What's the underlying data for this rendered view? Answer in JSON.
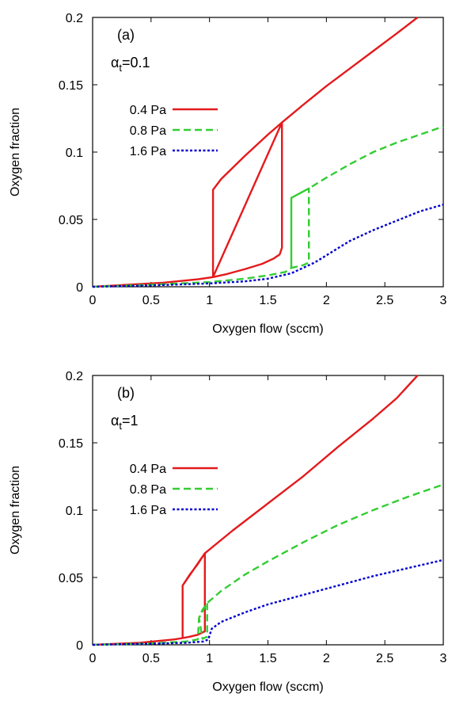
{
  "chart_data": [
    {
      "type": "line",
      "panel_label": "(a)",
      "param_symbol": "α",
      "param_sub": "t",
      "param_value": "=0.1",
      "xlabel": "Oxygen flow (sccm)",
      "ylabel": "Oxygen fraction",
      "xlim": [
        0,
        3
      ],
      "ylim": [
        0,
        0.2
      ],
      "xticks": [
        0,
        0.5,
        1,
        1.5,
        2,
        2.5,
        3
      ],
      "xtick_labels": [
        "0",
        "0.5",
        "1",
        "1.5",
        "2",
        "2.5",
        "3"
      ],
      "yticks": [
        0,
        0.05,
        0.1,
        0.15,
        0.2
      ],
      "ytick_labels": [
        "0",
        "0.05",
        "0.1",
        "0.15",
        "0.2"
      ],
      "legend_position": "top-left",
      "grid": false,
      "series": [
        {
          "name": "0.4 Pa",
          "color": "#e41a1c",
          "style": "solid",
          "points": [
            [
              0,
              0
            ],
            [
              0.3,
              0.0015
            ],
            [
              0.6,
              0.003
            ],
            [
              0.9,
              0.0055
            ],
            [
              1.03,
              0.0072
            ],
            [
              1.03,
              0.072
            ],
            [
              1.1,
              0.08
            ],
            [
              1.3,
              0.097
            ],
            [
              1.5,
              0.113
            ],
            [
              1.62,
              0.122
            ],
            [
              1.62,
              0.029
            ],
            [
              1.6,
              0.024
            ],
            [
              1.55,
              0.021
            ],
            [
              1.45,
              0.017
            ],
            [
              1.3,
              0.013
            ],
            [
              1.15,
              0.0095
            ],
            [
              1.03,
              0.0072
            ],
            [
              1.03,
              0.0072
            ],
            [
              1.62,
              0.122
            ],
            [
              1.8,
              0.135
            ],
            [
              2.0,
              0.149
            ],
            [
              2.2,
              0.162
            ],
            [
              2.4,
              0.175
            ],
            [
              2.6,
              0.188
            ],
            [
              2.78,
              0.2
            ]
          ]
        },
        {
          "name": "0.8 Pa",
          "color": "#32cd32",
          "style": "dashed",
          "points": [
            [
              0,
              0
            ],
            [
              0.5,
              0.0015
            ],
            [
              1.0,
              0.0035
            ],
            [
              1.3,
              0.006
            ],
            [
              1.5,
              0.0085
            ],
            [
              1.65,
              0.011
            ],
            [
              1.7,
              0.014
            ],
            [
              1.7,
              0.066
            ],
            [
              1.85,
              0.073
            ],
            [
              1.85,
              0.018
            ],
            [
              1.8,
              0.016
            ],
            [
              1.7,
              0.014
            ],
            [
              1.7,
              0.066
            ],
            [
              1.85,
              0.073
            ],
            [
              2.0,
              0.081
            ],
            [
              2.2,
              0.091
            ],
            [
              2.4,
              0.1
            ],
            [
              2.6,
              0.107
            ],
            [
              2.8,
              0.113
            ],
            [
              3.0,
              0.119
            ]
          ]
        },
        {
          "name": "1.6 Pa",
          "color": "#0000cd",
          "style": "dotted",
          "points": [
            [
              0,
              0
            ],
            [
              0.5,
              0.001
            ],
            [
              1.0,
              0.0025
            ],
            [
              1.3,
              0.004
            ],
            [
              1.5,
              0.006
            ],
            [
              1.7,
              0.01
            ],
            [
              1.9,
              0.018
            ],
            [
              2.05,
              0.026
            ],
            [
              2.2,
              0.034
            ],
            [
              2.4,
              0.042
            ],
            [
              2.6,
              0.049
            ],
            [
              2.8,
              0.056
            ],
            [
              3.0,
              0.061
            ]
          ]
        }
      ]
    },
    {
      "type": "line",
      "panel_label": "(b)",
      "param_symbol": "α",
      "param_sub": "t",
      "param_value": "=1",
      "xlabel": "Oxygen flow (sccm)",
      "ylabel": "Oxygen fraction",
      "xlim": [
        0,
        3
      ],
      "ylim": [
        0,
        0.2
      ],
      "xticks": [
        0,
        0.5,
        1,
        1.5,
        2,
        2.5,
        3
      ],
      "xtick_labels": [
        "0",
        "0.5",
        "1",
        "1.5",
        "2",
        "2.5",
        "3"
      ],
      "yticks": [
        0,
        0.05,
        0.1,
        0.15,
        0.2
      ],
      "ytick_labels": [
        "0",
        "0.05",
        "0.1",
        "0.15",
        "0.2"
      ],
      "legend_position": "top-left",
      "grid": false,
      "series": [
        {
          "name": "0.4 Pa",
          "color": "#e41a1c",
          "style": "solid",
          "points": [
            [
              0,
              0
            ],
            [
              0.4,
              0.0015
            ],
            [
              0.7,
              0.004
            ],
            [
              0.77,
              0.005
            ],
            [
              0.77,
              0.044
            ],
            [
              0.83,
              0.052
            ],
            [
              0.9,
              0.06
            ],
            [
              0.96,
              0.068
            ],
            [
              0.96,
              0.01
            ],
            [
              0.9,
              0.0075
            ],
            [
              0.83,
              0.006
            ],
            [
              0.77,
              0.005
            ],
            [
              0.77,
              0.044
            ],
            [
              0.96,
              0.068
            ],
            [
              1.2,
              0.085
            ],
            [
              1.5,
              0.105
            ],
            [
              1.8,
              0.125
            ],
            [
              2.1,
              0.147
            ],
            [
              2.4,
              0.168
            ],
            [
              2.6,
              0.183
            ],
            [
              2.78,
              0.2
            ]
          ]
        },
        {
          "name": "0.8 Pa",
          "color": "#32cd32",
          "style": "dashed",
          "points": [
            [
              0,
              0
            ],
            [
              0.5,
              0.001
            ],
            [
              0.8,
              0.0025
            ],
            [
              0.9,
              0.004
            ],
            [
              0.91,
              0.02
            ],
            [
              0.94,
              0.026
            ],
            [
              0.98,
              0.031
            ],
            [
              0.98,
              0.006
            ],
            [
              0.94,
              0.0045
            ],
            [
              0.91,
              0.02
            ],
            [
              0.98,
              0.031
            ],
            [
              1.1,
              0.04
            ],
            [
              1.3,
              0.052
            ],
            [
              1.5,
              0.062
            ],
            [
              1.8,
              0.076
            ],
            [
              2.1,
              0.089
            ],
            [
              2.4,
              0.1
            ],
            [
              2.7,
              0.11
            ],
            [
              3.0,
              0.119
            ]
          ]
        },
        {
          "name": "1.6 Pa",
          "color": "#0000cd",
          "style": "dotted",
          "points": [
            [
              0,
              0
            ],
            [
              0.5,
              0.0008
            ],
            [
              0.8,
              0.0015
            ],
            [
              0.95,
              0.0025
            ],
            [
              0.99,
              0.004
            ],
            [
              1.0,
              0.007
            ],
            [
              1.02,
              0.012
            ],
            [
              1.1,
              0.017
            ],
            [
              1.3,
              0.024
            ],
            [
              1.5,
              0.03
            ],
            [
              1.8,
              0.037
            ],
            [
              2.1,
              0.044
            ],
            [
              2.4,
              0.051
            ],
            [
              2.7,
              0.057
            ],
            [
              3.0,
              0.063
            ]
          ]
        }
      ]
    }
  ]
}
